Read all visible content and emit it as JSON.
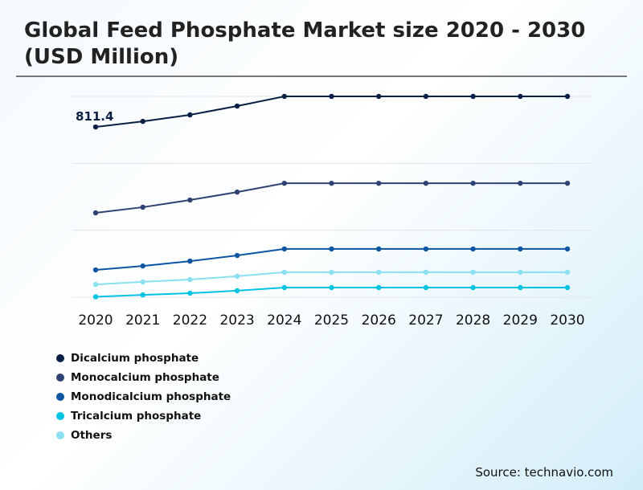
{
  "chart_data": {
    "type": "line",
    "title": "Global Feed Phosphate Market size 2020 - 2030 (USD Million)",
    "x": [
      "2020",
      "2021",
      "2022",
      "2023",
      "2024",
      "2025",
      "2026",
      "2027",
      "2028",
      "2029",
      "2030"
    ],
    "ylim": [
      0,
      957
    ],
    "grid": true,
    "legend_position": "bottom-left",
    "annotation": "811.4",
    "series": [
      {
        "name": "Dicalcium phosphate",
        "color": "#0a1f44",
        "values": [
          811.4,
          838,
          869,
          911,
          957,
          957,
          957,
          957,
          957,
          957,
          957
        ]
      },
      {
        "name": "Monocalcium phosphate",
        "color": "#2e4374",
        "values": [
          402,
          429,
          463,
          501,
          543,
          543,
          543,
          543,
          543,
          543,
          543
        ]
      },
      {
        "name": "Monodicalcium phosphate",
        "color": "#0b55a3",
        "values": [
          130,
          149,
          172,
          199,
          230,
          230,
          230,
          230,
          230,
          230,
          230
        ]
      },
      {
        "name": "Tricalcium phosphate",
        "color": "#00c3e3",
        "values": [
          2,
          11,
          19,
          31,
          46,
          46,
          46,
          46,
          46,
          46,
          46
        ]
      },
      {
        "name": "Others",
        "color": "#8adff0",
        "values": [
          61,
          73,
          84,
          100,
          119,
          119,
          119,
          119,
          119,
          119,
          119
        ]
      }
    ]
  },
  "source": "Source: technavio.com"
}
